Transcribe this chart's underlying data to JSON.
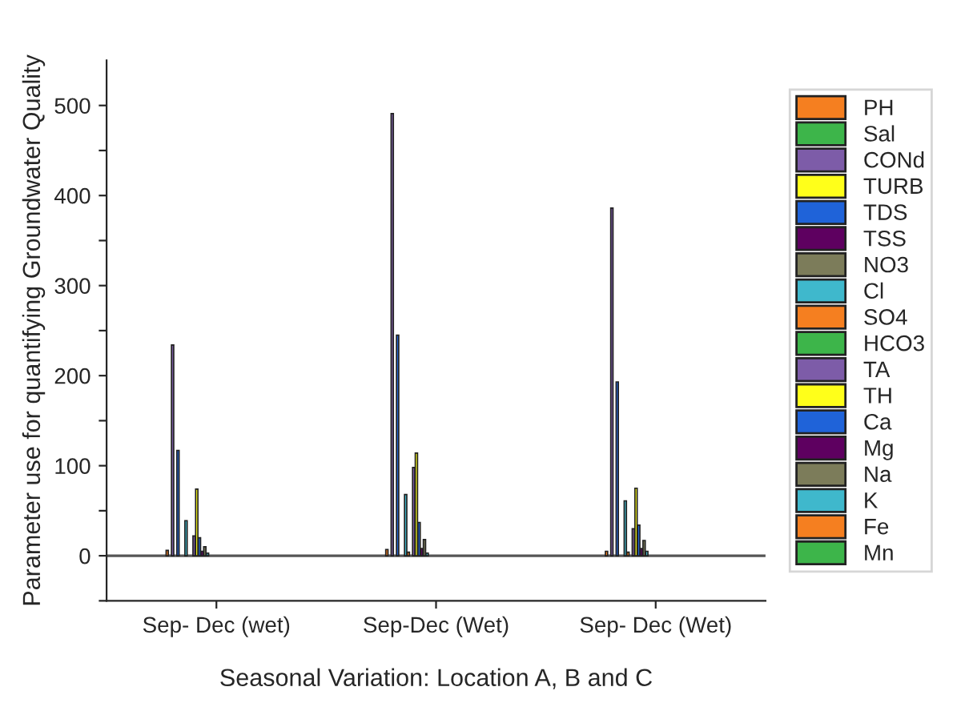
{
  "chart_data": {
    "type": "bar",
    "xlabel": "Seasonal Variation: Location A, B and C",
    "ylabel": "Parameter use for quantifying Groundwater Quality",
    "categories": [
      "Sep- Dec (wet)",
      "Sep-Dec (Wet)",
      "Sep- Dec (Wet)"
    ],
    "series": [
      {
        "name": "PH",
        "color": "#f57f20",
        "values": [
          6,
          7,
          5
        ]
      },
      {
        "name": "Sal",
        "color": "#3db54a",
        "values": [
          null,
          null,
          null
        ]
      },
      {
        "name": "CONd",
        "color": "#7d5ca8",
        "values": [
          234,
          491,
          386
        ]
      },
      {
        "name": "TURB",
        "color": "#ffff1a",
        "values": [
          null,
          null,
          null
        ]
      },
      {
        "name": "TDS",
        "color": "#1f63d9",
        "values": [
          117,
          245,
          193
        ]
      },
      {
        "name": "TSS",
        "color": "#5e0060",
        "values": [
          null,
          null,
          null
        ]
      },
      {
        "name": "NO3",
        "color": "#7c7c5a",
        "values": [
          null,
          null,
          null
        ]
      },
      {
        "name": "Cl",
        "color": "#3fb8cc",
        "values": [
          39,
          68,
          61
        ]
      },
      {
        "name": "SO4",
        "color": "#f57f20",
        "values": [
          null,
          4,
          4
        ]
      },
      {
        "name": "HCO3",
        "color": "#3db54a",
        "values": [
          null,
          null,
          null
        ]
      },
      {
        "name": "TA",
        "color": "#7d5ca8",
        "values": [
          22,
          98,
          30
        ]
      },
      {
        "name": "TH",
        "color": "#ffff1a",
        "values": [
          74,
          114,
          75
        ]
      },
      {
        "name": "Ca",
        "color": "#1f63d9",
        "values": [
          20,
          37,
          34
        ]
      },
      {
        "name": "Mg",
        "color": "#5e0060",
        "values": [
          5,
          8,
          8
        ]
      },
      {
        "name": "Na",
        "color": "#7c7c5a",
        "values": [
          10,
          18,
          17
        ]
      },
      {
        "name": "K",
        "color": "#3fb8cc",
        "values": [
          3,
          3,
          5
        ]
      },
      {
        "name": "Fe",
        "color": "#f57f20",
        "values": [
          null,
          null,
          null
        ]
      },
      {
        "name": "Mn",
        "color": "#3db54a",
        "values": [
          null,
          null,
          null
        ]
      }
    ],
    "ylim": [
      -50,
      550
    ],
    "yticks": [
      {
        "value": -50,
        "label": null
      },
      0,
      {
        "value": 50,
        "label": null
      },
      100,
      {
        "value": 150,
        "label": null
      },
      200,
      {
        "value": 250,
        "label": null
      },
      300,
      {
        "value": 350,
        "label": null
      },
      400,
      {
        "value": 450,
        "label": null
      },
      500
    ],
    "ref_lines": [
      {
        "axis": "y",
        "value": 0,
        "label": null,
        "color": "#555555"
      }
    ],
    "grid": false,
    "legend": "right"
  }
}
